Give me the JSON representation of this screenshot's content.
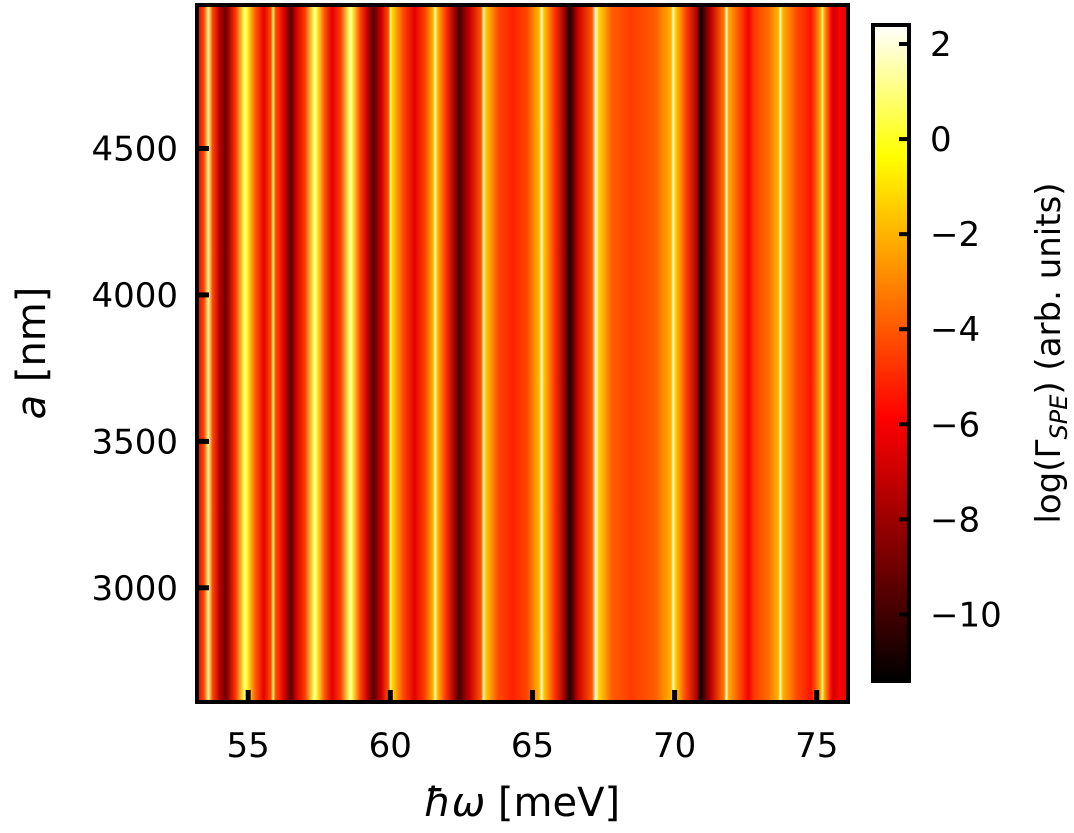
{
  "chart_data": {
    "type": "heatmap",
    "xlabel_italic": "ħω",
    "xlabel_unit": " [meV]",
    "ylabel_italic": "a",
    "ylabel_unit": " [nm]",
    "colorbar_label_prefix": "log(Γ",
    "colorbar_label_subscript": "SPE",
    "colorbar_label_suffix": ") (arb. units)",
    "xlim": [
      53.2,
      76.1
    ],
    "ylim": [
      2610,
      4990
    ],
    "x_ticks": [
      55,
      60,
      65,
      70,
      75
    ],
    "x_tick_labels": [
      "55",
      "60",
      "65",
      "70",
      "75"
    ],
    "y_ticks": [
      3000,
      3500,
      4000,
      4500
    ],
    "y_tick_labels": [
      "3000",
      "3500",
      "4000",
      "4500"
    ],
    "colorbar_range": [
      -11.4,
      2.4
    ],
    "colorbar_ticks": [
      2,
      0,
      -2,
      -4,
      -6,
      -8,
      -10
    ],
    "colorbar_tick_labels": [
      "2",
      "0",
      "−2",
      "−4",
      "−6",
      "−8",
      "−10"
    ],
    "colormap": "hot",
    "colormap_colors": [
      "#000000",
      "#800000",
      "#ff0000",
      "#ff8000",
      "#ffff00",
      "#ffffff"
    ],
    "profile": {
      "omega": [
        53.2,
        53.45,
        53.6,
        53.75,
        54.0,
        54.2,
        54.3,
        54.55,
        54.85,
        54.9,
        54.95,
        55.25,
        55.55,
        55.8,
        55.88,
        55.96,
        56.25,
        56.5,
        56.7,
        57.0,
        57.3,
        57.35,
        57.4,
        57.7,
        57.95,
        58.25,
        58.55,
        58.6,
        58.65,
        58.95,
        59.2,
        59.4,
        59.7,
        59.95,
        60.0,
        60.05,
        60.45,
        60.85,
        61.2,
        61.5,
        61.58,
        61.66,
        61.95,
        62.25,
        62.4,
        62.8,
        63.2,
        63.28,
        63.36,
        63.8,
        64.3,
        64.8,
        65.25,
        65.32,
        65.4,
        65.8,
        66.15,
        66.3,
        66.6,
        67.1,
        67.22,
        67.34,
        67.8,
        68.5,
        69.3,
        69.88,
        69.95,
        70.02,
        70.4,
        70.8,
        70.9,
        71.3,
        71.75,
        71.82,
        71.9,
        72.3,
        72.6,
        72.8,
        73.3,
        73.65,
        73.72,
        73.8,
        74.3,
        74.8,
        75.15,
        75.2,
        75.25,
        75.5,
        75.6,
        75.75,
        76.1
      ],
      "log_gamma": [
        -6.5,
        -4.3,
        1.2,
        -4.4,
        -7.5,
        -9.0,
        -8.0,
        -4.8,
        0.3,
        1.5,
        0.0,
        -3.9,
        -6.4,
        -4.2,
        0.8,
        -4.2,
        -6.5,
        -9.6,
        -6.8,
        -4.6,
        0.5,
        1.5,
        0.2,
        -4.2,
        -6.5,
        -4.6,
        0.6,
        1.7,
        0.4,
        -4.5,
        -7.3,
        -9.6,
        -6.8,
        -4.0,
        1.3,
        -1.0,
        -4.3,
        -6.5,
        -4.6,
        -2.0,
        1.5,
        -1.8,
        -4.8,
        -7.8,
        -10.0,
        -7.0,
        -4.0,
        1.8,
        -1.5,
        -4.3,
        -5.2,
        -4.4,
        -1.8,
        2.1,
        -1.5,
        -4.9,
        -8.2,
        -11.0,
        -7.0,
        -4.0,
        2.0,
        -1.2,
        -3.9,
        -4.6,
        -3.9,
        -2.0,
        2.1,
        -1.2,
        -4.5,
        -7.8,
        -11.2,
        -7.0,
        -3.2,
        1.8,
        -2.2,
        -4.3,
        -6.1,
        -4.6,
        -3.5,
        -2.0,
        1.6,
        -2.0,
        -4.3,
        -5.5,
        -2.0,
        1.5,
        -2.0,
        -5.7,
        -7.0,
        -6.0,
        -6.2
      ]
    }
  }
}
